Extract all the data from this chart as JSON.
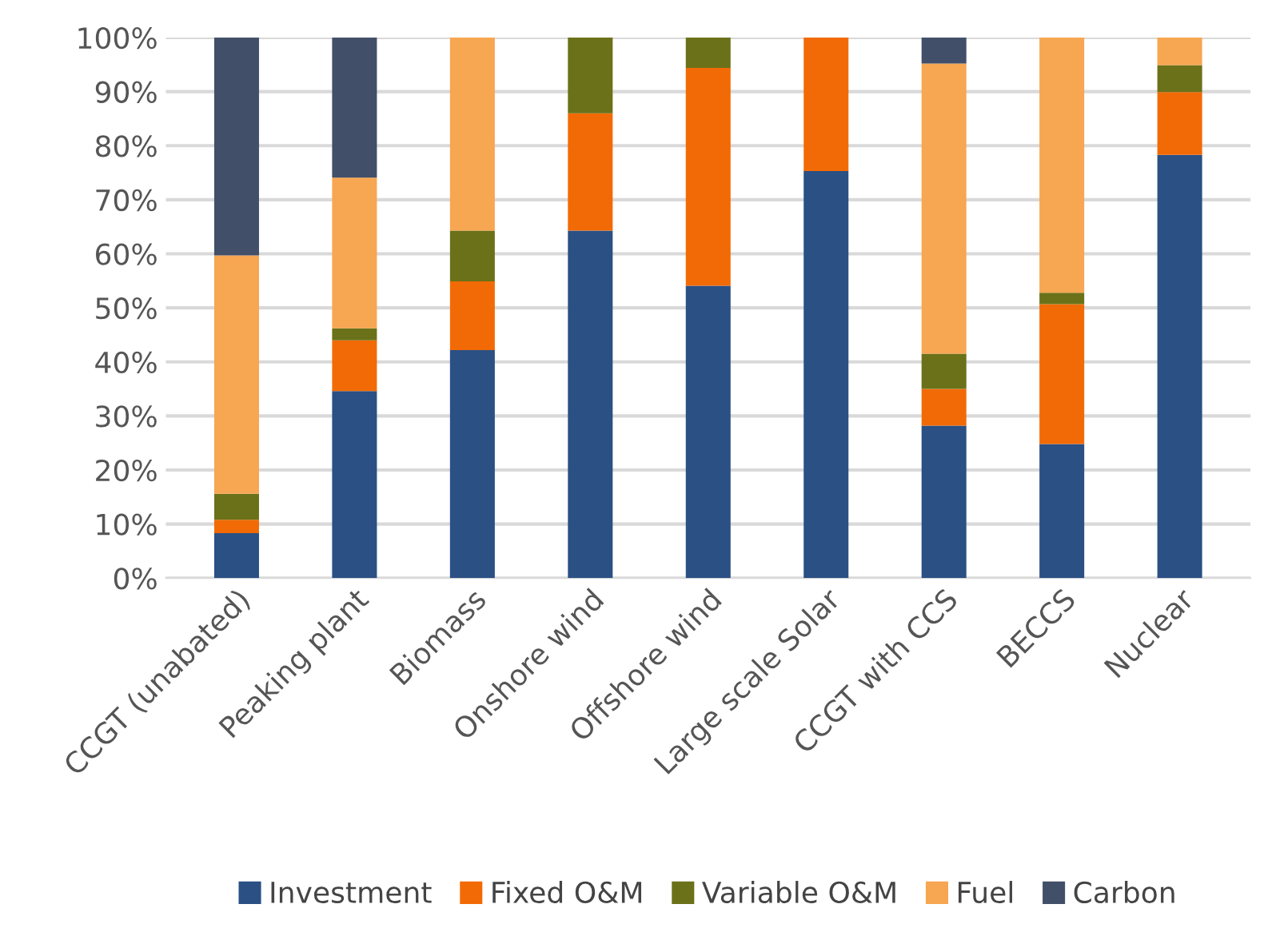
{
  "chart_data": {
    "type": "bar",
    "stacked": true,
    "categories": [
      "CCGT (unabated)",
      "Peaking plant",
      "Biomass",
      "Onshore wind",
      "Offshore wind",
      "Large scale Solar",
      "CCGT with CCS",
      "BECCS",
      "Nuclear"
    ],
    "series": [
      {
        "name": "Investment",
        "color": "#2a5084",
        "values": [
          8.3,
          34.6,
          42.2,
          64.3,
          54.1,
          75.3,
          28.2,
          24.8,
          78.3
        ]
      },
      {
        "name": "Fixed O&M",
        "color": "#f26a05",
        "values": [
          2.5,
          9.4,
          12.7,
          21.7,
          40.3,
          24.7,
          6.8,
          25.9,
          11.6
        ]
      },
      {
        "name": "Variable O&M",
        "color": "#6b7118",
        "values": [
          4.8,
          2.2,
          9.4,
          14.0,
          5.6,
          null,
          6.5,
          2.1,
          5.0
        ]
      },
      {
        "name": "Fuel",
        "color": "#f7a651",
        "values": [
          44.1,
          27.9,
          35.7,
          null,
          null,
          null,
          53.7,
          47.2,
          5.1
        ]
      },
      {
        "name": "Carbon",
        "color": "#424f68",
        "values": [
          40.3,
          25.9,
          null,
          null,
          null,
          null,
          4.8,
          null,
          null
        ]
      }
    ],
    "ylim": [
      0,
      100
    ],
    "yticks": [
      {
        "value": 0,
        "label": "0%"
      },
      {
        "value": 10,
        "label": "10%"
      },
      {
        "value": 20,
        "label": "20%"
      },
      {
        "value": 30,
        "label": "30%"
      },
      {
        "value": 40,
        "label": "40%"
      },
      {
        "value": 50,
        "label": "50%"
      },
      {
        "value": 60,
        "label": "60%"
      },
      {
        "value": 70,
        "label": "70%"
      },
      {
        "value": 80,
        "label": "80%"
      },
      {
        "value": 90,
        "label": "90%"
      },
      {
        "value": 100,
        "label": "100%"
      }
    ],
    "grid": "y",
    "legend": "bottom"
  }
}
